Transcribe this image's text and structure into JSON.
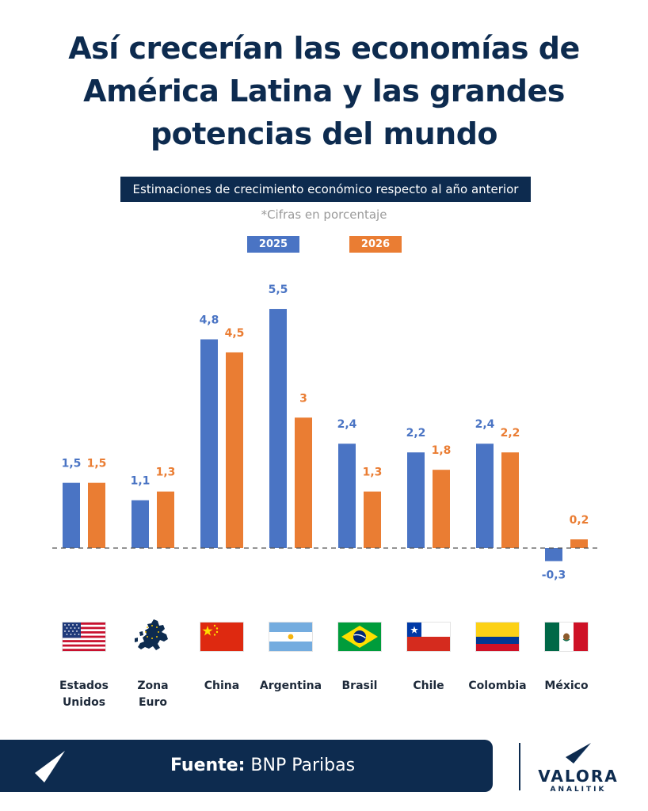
{
  "header": {
    "title_lines": [
      "Así crecerían las economías de",
      "América Latina y las grandes",
      "potencias del mundo"
    ],
    "subtitle": "Estimaciones de crecimiento económico respecto al año anterior",
    "note": "*Cifras en porcentaje"
  },
  "colors": {
    "series_2025": "#4a74c4",
    "series_2026": "#ea7d33",
    "navy": "#0d2b4f"
  },
  "chart_data": {
    "type": "bar",
    "categories": [
      "Estados Unidos",
      "Zona Euro",
      "China",
      "Argentina",
      "Brasil",
      "Chile",
      "Colombia",
      "México"
    ],
    "category_lines": [
      [
        "Estados",
        "Unidos"
      ],
      [
        "Zona",
        "Euro"
      ],
      [
        "China"
      ],
      [
        "Argentina"
      ],
      [
        "Brasil"
      ],
      [
        "Chile"
      ],
      [
        "Colombia"
      ],
      [
        "México"
      ]
    ],
    "series": [
      {
        "name": "2025",
        "values": [
          1.5,
          1.1,
          4.8,
          5.5,
          2.4,
          2.2,
          2.4,
          -0.3
        ],
        "labels": [
          "1,5",
          "1,1",
          "4,8",
          "5,5",
          "2,4",
          "2,2",
          "2,4",
          "-0,3"
        ]
      },
      {
        "name": "2026",
        "values": [
          1.5,
          1.3,
          4.5,
          3,
          1.3,
          1.8,
          2.2,
          0.2
        ],
        "labels": [
          "1,5",
          "1,3",
          "4,5",
          "3",
          "1,3",
          "1,8",
          "2,2",
          "0,2"
        ]
      }
    ],
    "legend_position": "top-center",
    "grid": false
  },
  "flags": [
    "us-flag-icon",
    "eu-map-icon",
    "china-flag-icon",
    "argentina-flag-icon",
    "brazil-flag-icon",
    "chile-flag-icon",
    "colombia-flag-icon",
    "mexico-flag-icon"
  ],
  "footer": {
    "source_label": "Fuente:",
    "source_value": "BNP Paribas",
    "brand": "VALORA",
    "brand_sub": "ANALITIK"
  }
}
